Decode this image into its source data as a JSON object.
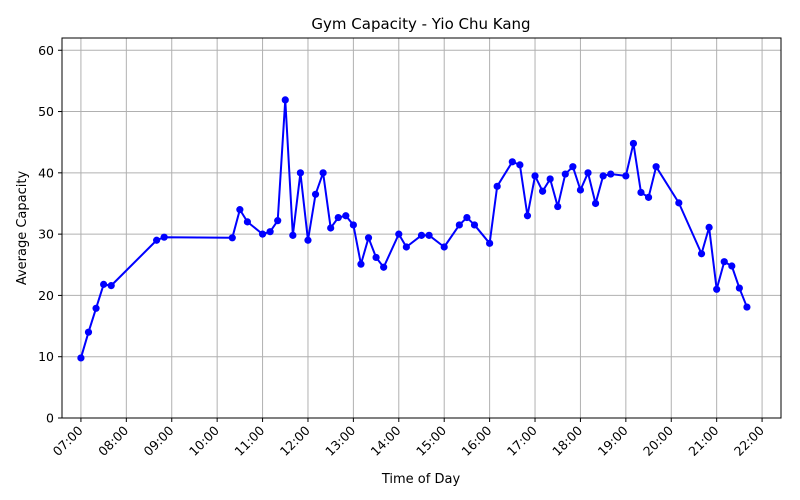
{
  "chart_data": {
    "type": "line",
    "title": "Gym Capacity - Yio Chu Kang",
    "xlabel": "Time of Day",
    "ylabel": "Average Capacity",
    "x_ticks": [
      "07:00",
      "08:00",
      "09:00",
      "10:00",
      "11:00",
      "12:00",
      "13:00",
      "14:00",
      "15:00",
      "16:00",
      "17:00",
      "18:00",
      "19:00",
      "20:00",
      "21:00",
      "22:00"
    ],
    "y_ticks": [
      0,
      10,
      20,
      30,
      40,
      50,
      60
    ],
    "xlim": [
      "06:35",
      "22:25"
    ],
    "ylim": [
      0,
      62
    ],
    "grid": true,
    "line_color": "#0000ff",
    "marker": "circle",
    "series": [
      {
        "x": [
          "07:00",
          "07:10",
          "07:20",
          "07:30",
          "07:40",
          "08:40",
          "08:50",
          "10:20",
          "10:30",
          "10:40",
          "11:00",
          "11:10",
          "11:20",
          "11:30",
          "11:40",
          "11:50",
          "12:00",
          "12:10",
          "12:20",
          "12:30",
          "12:40",
          "12:50",
          "13:00",
          "13:10",
          "13:20",
          "13:30",
          "13:40",
          "14:00",
          "14:10",
          "14:30",
          "14:40",
          "15:00",
          "15:20",
          "15:30",
          "15:40",
          "16:00",
          "16:10",
          "16:30",
          "16:40",
          "16:50",
          "17:00",
          "17:10",
          "17:20",
          "17:30",
          "17:40",
          "17:50",
          "18:00",
          "18:10",
          "18:20",
          "18:30",
          "18:40",
          "19:00",
          "19:10",
          "19:20",
          "19:30",
          "19:40",
          "20:10",
          "20:40",
          "20:50",
          "21:00",
          "21:10",
          "21:20",
          "21:30",
          "21:40"
        ],
        "values": [
          9.8,
          14.0,
          17.9,
          21.8,
          21.6,
          29.0,
          29.5,
          29.4,
          34.0,
          32.0,
          30.0,
          30.4,
          32.2,
          51.9,
          29.8,
          40.0,
          29.0,
          36.5,
          40.0,
          31.0,
          32.7,
          33.0,
          31.5,
          25.1,
          29.4,
          26.2,
          24.6,
          30.0,
          27.9,
          29.8,
          29.8,
          27.9,
          31.5,
          32.7,
          31.5,
          28.5,
          37.8,
          41.8,
          41.3,
          33.0,
          39.5,
          37.0,
          39.0,
          34.5,
          39.8,
          41.0,
          37.2,
          40.0,
          35.0,
          39.5,
          39.8,
          39.5,
          44.8,
          36.8,
          36.0,
          41.0,
          35.1,
          26.8,
          31.1,
          21.0,
          25.5,
          24.8,
          21.2,
          18.1
        ]
      }
    ]
  }
}
